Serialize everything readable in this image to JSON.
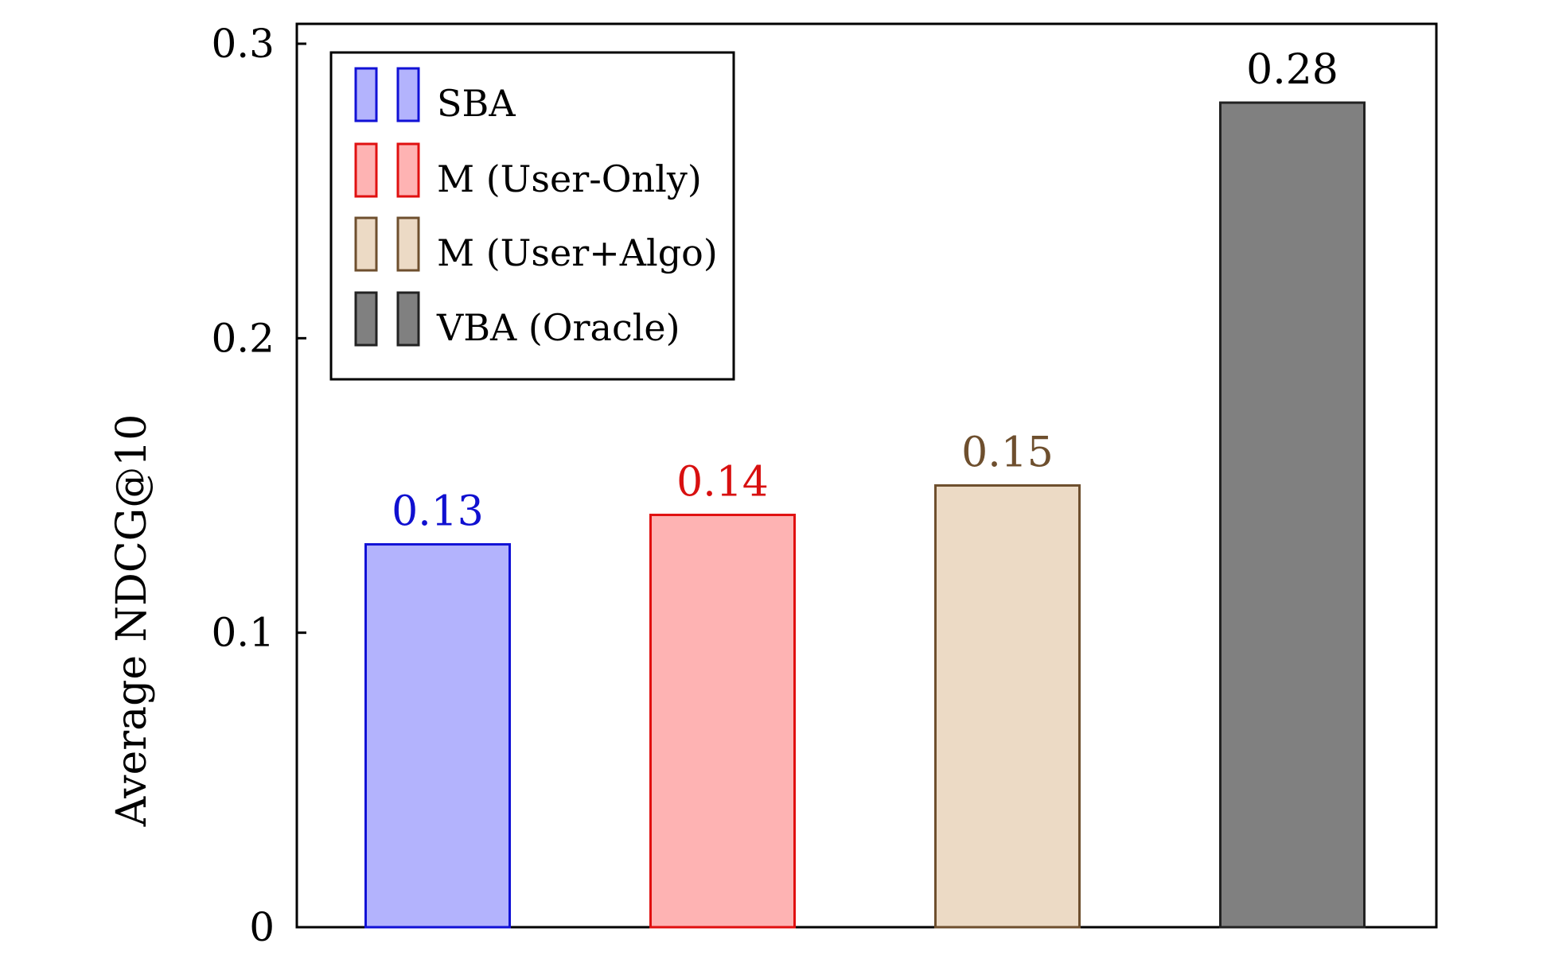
{
  "chart_data": {
    "type": "bar",
    "categories": [
      "SBA",
      "M (User-Only)",
      "M (User+Algo)",
      "VBA (Oracle)"
    ],
    "values": [
      0.13,
      0.14,
      0.15,
      0.28
    ],
    "data_labels": [
      "0.13",
      "0.14",
      "0.15",
      "0.28"
    ],
    "title": "",
    "xlabel": "",
    "ylabel": "Average NDCG@10",
    "ylim": [
      0,
      0.3
    ],
    "yticks": [
      0,
      0.1,
      0.2,
      0.3
    ],
    "ytick_labels": [
      "0",
      "0.1",
      "0.2",
      "0.3"
    ],
    "grid": false,
    "legend_position": "top-left",
    "legend": [
      {
        "name": "SBA"
      },
      {
        "name": "M (User-Only)"
      },
      {
        "name": "M (User+Algo)"
      },
      {
        "name": "VBA (Oracle)"
      }
    ],
    "colors": {
      "fill": [
        "#b3b3fd",
        "#feb3b3",
        "#ecdac5",
        "#808080"
      ],
      "edge": [
        "#1111d6",
        "#e01010",
        "#6e4f2e",
        "#222222"
      ],
      "label": [
        "#1010d0",
        "#d81010",
        "#6e4f2e",
        "#000000"
      ]
    }
  }
}
